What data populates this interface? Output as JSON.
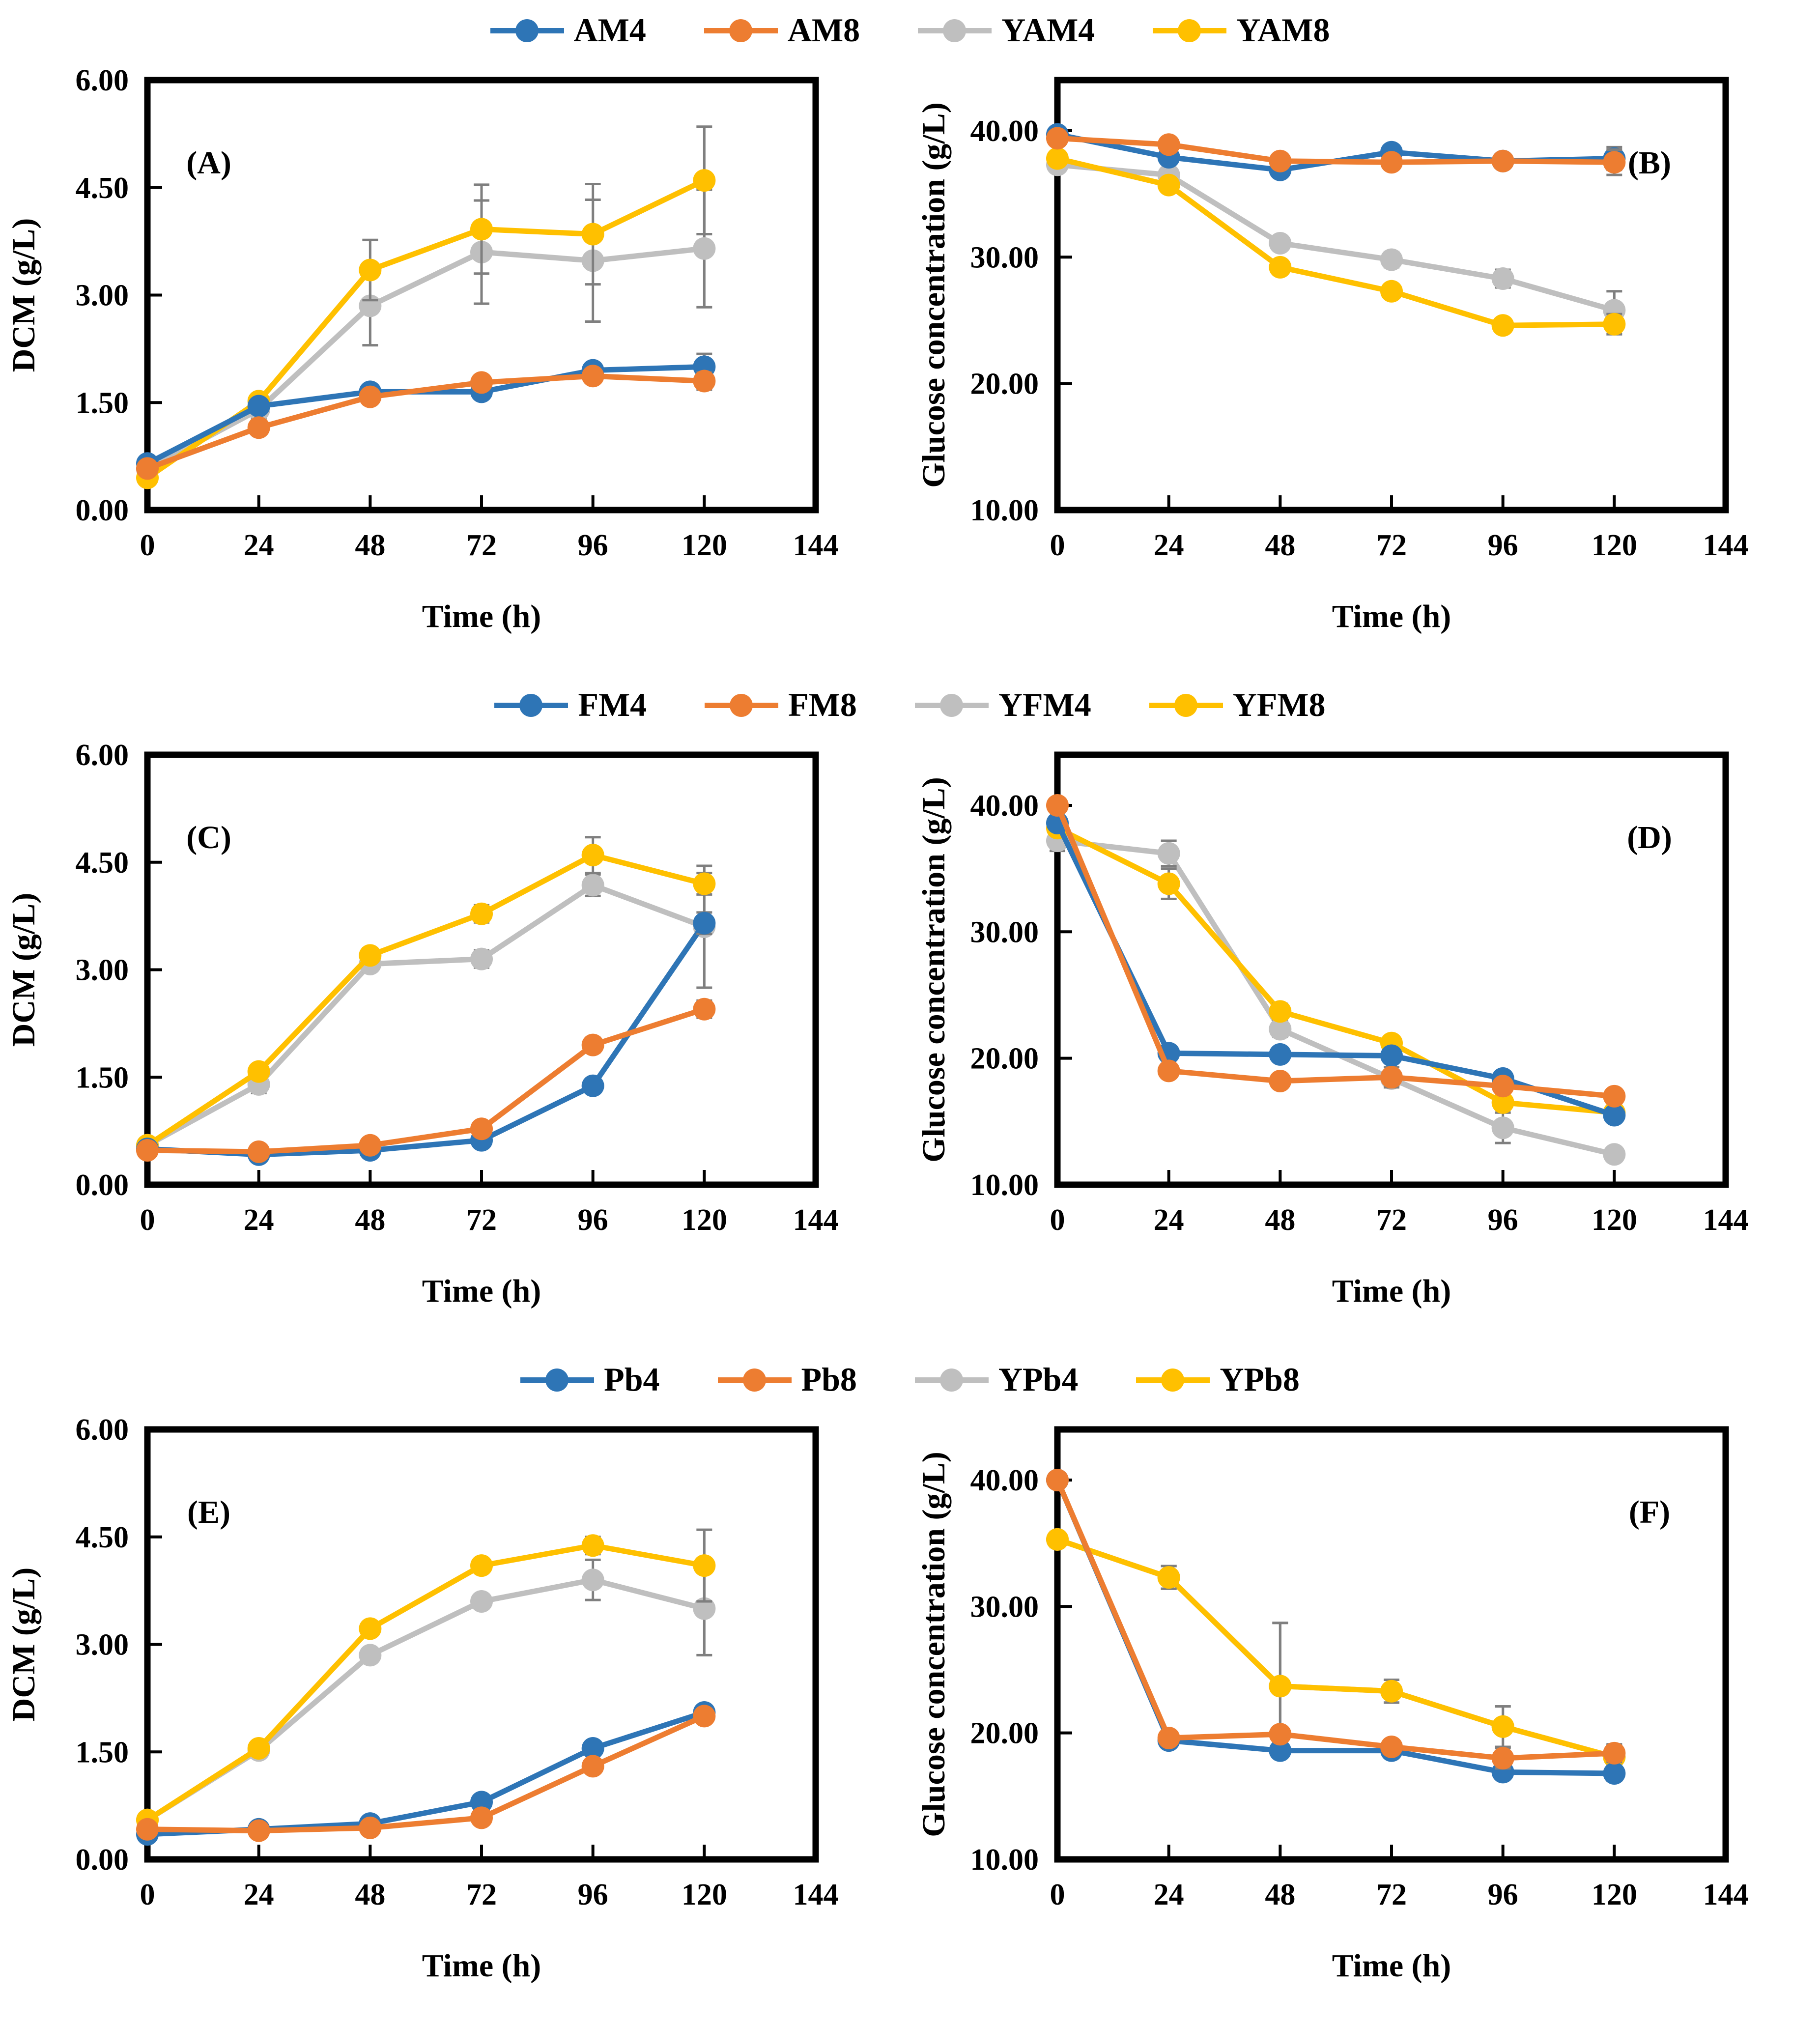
{
  "colors": {
    "blue": "#2E75B6",
    "orange": "#ED7D31",
    "gray": "#BFBFBF",
    "yellow": "#FFC000",
    "error_bar": "#7F7F7F",
    "axis": "#000000"
  },
  "x_axis": {
    "title": "Time (h)",
    "ticks": [
      0,
      24,
      48,
      72,
      96,
      120,
      144
    ],
    "lim": [
      0,
      144
    ]
  },
  "legends": [
    [
      {
        "label": "AM4",
        "color": "#2E75B6"
      },
      {
        "label": "AM8",
        "color": "#ED7D31"
      },
      {
        "label": "YAM4",
        "color": "#BFBFBF"
      },
      {
        "label": "YAM8",
        "color": "#FFC000"
      }
    ],
    [
      {
        "label": "FM4",
        "color": "#2E75B6"
      },
      {
        "label": "FM8",
        "color": "#ED7D31"
      },
      {
        "label": "YFM4",
        "color": "#BFBFBF"
      },
      {
        "label": "YFM8",
        "color": "#FFC000"
      }
    ],
    [
      {
        "label": "Pb4",
        "color": "#2E75B6"
      },
      {
        "label": "Pb8",
        "color": "#ED7D31"
      },
      {
        "label": "YPb4",
        "color": "#BFBFBF"
      },
      {
        "label": "YPb8",
        "color": "#FFC000"
      }
    ]
  ],
  "chart_data": [
    {
      "type": "line",
      "panel_label": "(A)",
      "label_side": "left",
      "xlabel": "Time (h)",
      "ylabel": "DCM (g/L)",
      "x": [
        0,
        24,
        48,
        72,
        96,
        120
      ],
      "xlim": [
        0,
        144
      ],
      "ylim": [
        0,
        6
      ],
      "ytick_values": [
        0,
        1.5,
        3,
        4.5,
        6
      ],
      "ytick_labels": [
        "0.00",
        "1.50",
        "3.00",
        "4.50",
        "6.00"
      ],
      "grid": false,
      "legend_position": "top",
      "series": [
        {
          "name": "YAM4",
          "color": "#BFBFBF",
          "values": [
            0.57,
            1.4,
            2.85,
            3.6,
            3.48,
            3.65
          ],
          "err": [
            0.05,
            0.12,
            0.55,
            0.72,
            0.85,
            0.82
          ]
        },
        {
          "name": "YAM8",
          "color": "#FFC000",
          "values": [
            0.45,
            1.52,
            3.35,
            3.92,
            3.85,
            4.6
          ],
          "err": [
            0.05,
            0.1,
            0.42,
            0.62,
            0.7,
            0.75
          ]
        },
        {
          "name": "AM4",
          "color": "#2E75B6",
          "values": [
            0.65,
            1.45,
            1.65,
            1.65,
            1.95,
            2.0
          ],
          "err": [
            0.05,
            0.05,
            0.06,
            0.08,
            0.08,
            0.18
          ]
        },
        {
          "name": "AM8",
          "color": "#ED7D31",
          "values": [
            0.58,
            1.15,
            1.58,
            1.78,
            1.87,
            1.8
          ],
          "err": [
            0.05,
            0.06,
            0.1,
            0.1,
            0.08,
            0.12
          ]
        }
      ]
    },
    {
      "type": "line",
      "panel_label": "(B)",
      "label_side": "right",
      "xlabel": "Time (h)",
      "ylabel": "Glucose concentration  (g/L)",
      "x": [
        0,
        24,
        48,
        72,
        96,
        120
      ],
      "xlim": [
        0,
        144
      ],
      "ylim": [
        10,
        44
      ],
      "ytick_values": [
        10,
        20,
        30,
        40
      ],
      "ytick_labels": [
        "10.00",
        "20.00",
        "30.00",
        "40.00"
      ],
      "grid": false,
      "legend_position": "top",
      "series": [
        {
          "name": "YAM4",
          "color": "#BFBFBF",
          "values": [
            37.3,
            36.5,
            31.1,
            29.8,
            28.3,
            25.8
          ],
          "err": [
            0.3,
            0.4,
            0.5,
            0.6,
            0.7,
            1.5
          ]
        },
        {
          "name": "YAM8",
          "color": "#FFC000",
          "values": [
            37.8,
            35.7,
            29.2,
            27.3,
            24.6,
            24.7
          ],
          "err": [
            0.3,
            0.4,
            0.5,
            0.4,
            0.5,
            0.8
          ]
        },
        {
          "name": "AM4",
          "color": "#2E75B6",
          "values": [
            39.7,
            37.9,
            36.9,
            38.3,
            37.6,
            37.8
          ],
          "err": [
            0.3,
            0.3,
            0.5,
            0.4,
            0.5,
            0.9
          ]
        },
        {
          "name": "AM8",
          "color": "#ED7D31",
          "values": [
            39.4,
            38.9,
            37.6,
            37.5,
            37.6,
            37.5
          ],
          "err": [
            0.3,
            0.3,
            0.4,
            0.5,
            0.5,
            1.0
          ]
        }
      ]
    },
    {
      "type": "line",
      "panel_label": "(C)",
      "label_side": "left",
      "xlabel": "Time (h)",
      "ylabel": "DCM (g/L)",
      "x": [
        0,
        24,
        48,
        72,
        96,
        120
      ],
      "xlim": [
        0,
        144
      ],
      "ylim": [
        0,
        6
      ],
      "ytick_values": [
        0,
        1.5,
        3,
        4.5,
        6
      ],
      "ytick_labels": [
        "0.00",
        "1.50",
        "3.00",
        "4.50",
        "6.00"
      ],
      "grid": false,
      "legend_position": "top",
      "series": [
        {
          "name": "YFM4",
          "color": "#BFBFBF",
          "values": [
            0.55,
            1.4,
            3.08,
            3.15,
            4.18,
            3.6
          ],
          "err": [
            0.05,
            0.12,
            0.1,
            0.12,
            0.15,
            0.85
          ]
        },
        {
          "name": "YFM8",
          "color": "#FFC000",
          "values": [
            0.55,
            1.58,
            3.2,
            3.78,
            4.6,
            4.2
          ],
          "err": [
            0.05,
            0.1,
            0.1,
            0.12,
            0.25,
            0.15
          ]
        },
        {
          "name": "FM4",
          "color": "#2E75B6",
          "values": [
            0.5,
            0.42,
            0.48,
            0.62,
            1.38,
            3.65
          ],
          "err": [
            0.04,
            0.04,
            0.05,
            0.06,
            0.1,
            0.15
          ]
        },
        {
          "name": "FM8",
          "color": "#ED7D31",
          "values": [
            0.48,
            0.46,
            0.55,
            0.78,
            1.95,
            2.45
          ],
          "err": [
            0.04,
            0.04,
            0.05,
            0.07,
            0.1,
            0.12
          ]
        }
      ]
    },
    {
      "type": "line",
      "panel_label": "(D)",
      "label_side": "right",
      "xlabel": "Time (h)",
      "ylabel": "Glucose concentration  (g/L)",
      "x": [
        0,
        24,
        48,
        72,
        96,
        120
      ],
      "xlim": [
        0,
        144
      ],
      "ylim": [
        10,
        44
      ],
      "ytick_values": [
        10,
        20,
        30,
        40
      ],
      "ytick_labels": [
        "10.00",
        "20.00",
        "30.00",
        "40.00"
      ],
      "grid": false,
      "legend_position": "top",
      "series": [
        {
          "name": "YFM4",
          "color": "#BFBFBF",
          "values": [
            37.2,
            36.2,
            22.3,
            18.4,
            14.5,
            12.4
          ],
          "err": [
            0.8,
            1.0,
            0.6,
            0.5,
            1.2,
            0.5
          ]
        },
        {
          "name": "YFM8",
          "color": "#FFC000",
          "values": [
            38.2,
            33.8,
            23.7,
            21.2,
            16.5,
            15.7
          ],
          "err": [
            0.5,
            1.2,
            0.6,
            0.4,
            0.5,
            0.4
          ]
        },
        {
          "name": "FM4",
          "color": "#2E75B6",
          "values": [
            38.6,
            20.4,
            20.3,
            20.2,
            18.4,
            15.5
          ],
          "err": [
            0.5,
            0.4,
            0.3,
            0.3,
            0.3,
            0.4
          ]
        },
        {
          "name": "FM8",
          "color": "#ED7D31",
          "values": [
            40.0,
            19.0,
            18.2,
            18.5,
            17.8,
            17.0
          ],
          "err": [
            0.4,
            0.4,
            0.3,
            0.8,
            0.4,
            0.5
          ]
        }
      ]
    },
    {
      "type": "line",
      "panel_label": "(E)",
      "label_side": "left",
      "xlabel": "Time (h)",
      "ylabel": "DCM (g/L)",
      "x": [
        0,
        24,
        48,
        72,
        96,
        120
      ],
      "xlim": [
        0,
        144
      ],
      "ylim": [
        0,
        6
      ],
      "ytick_values": [
        0,
        1.5,
        3,
        4.5,
        6
      ],
      "ytick_labels": [
        "0.00",
        "1.50",
        "3.00",
        "4.50",
        "6.00"
      ],
      "grid": false,
      "legend_position": "top",
      "series": [
        {
          "name": "YPb4",
          "color": "#BFBFBF",
          "values": [
            0.55,
            1.52,
            2.85,
            3.6,
            3.9,
            3.5
          ],
          "err": [
            0.04,
            0.06,
            0.08,
            0.1,
            0.28,
            0.65
          ]
        },
        {
          "name": "YPb8",
          "color": "#FFC000",
          "values": [
            0.55,
            1.55,
            3.22,
            4.1,
            4.38,
            4.1
          ],
          "err": [
            0.04,
            0.06,
            0.08,
            0.08,
            0.12,
            0.5
          ]
        },
        {
          "name": "Pb4",
          "color": "#2E75B6",
          "values": [
            0.35,
            0.42,
            0.5,
            0.8,
            1.55,
            2.05
          ],
          "err": [
            0.03,
            0.03,
            0.04,
            0.06,
            0.08,
            0.08
          ]
        },
        {
          "name": "Pb8",
          "color": "#ED7D31",
          "values": [
            0.42,
            0.4,
            0.44,
            0.58,
            1.3,
            2.0
          ],
          "err": [
            0.03,
            0.03,
            0.04,
            0.05,
            0.08,
            0.08
          ]
        }
      ]
    },
    {
      "type": "line",
      "panel_label": "(F)",
      "label_side": "right",
      "xlabel": "Time (h)",
      "ylabel": "Glucose concentration  (g/L)",
      "x": [
        0,
        24,
        48,
        72,
        96,
        120
      ],
      "xlim": [
        0,
        144
      ],
      "ylim": [
        10,
        44
      ],
      "ytick_values": [
        10,
        20,
        30,
        40
      ],
      "ytick_labels": [
        "10.00",
        "20.00",
        "30.00",
        "40.00"
      ],
      "grid": false,
      "legend_position": "top",
      "series": [
        {
          "name": "YPb4",
          "color": "#BFBFBF",
          "values": [
            35.3,
            32.3,
            23.7,
            23.3,
            20.5,
            18.1
          ],
          "err": [
            0.6,
            0.9,
            5.0,
            0.9,
            1.6,
            0.9
          ]
        },
        {
          "name": "YPb8",
          "color": "#FFC000",
          "values": [
            35.3,
            32.3,
            23.7,
            23.3,
            20.5,
            18.1
          ],
          "err": [
            0.6,
            0.9,
            5.0,
            0.9,
            1.6,
            0.9
          ]
        },
        {
          "name": "Pb4",
          "color": "#2E75B6",
          "values": [
            40.0,
            19.4,
            18.6,
            18.6,
            16.9,
            16.8
          ],
          "err": [
            0.3,
            0.4,
            0.3,
            0.3,
            0.4,
            0.6
          ]
        },
        {
          "name": "Pb8",
          "color": "#ED7D31",
          "values": [
            40.0,
            19.6,
            19.9,
            18.9,
            18.0,
            18.4
          ],
          "err": [
            0.3,
            0.4,
            0.4,
            0.3,
            0.8,
            0.7
          ]
        }
      ]
    }
  ]
}
